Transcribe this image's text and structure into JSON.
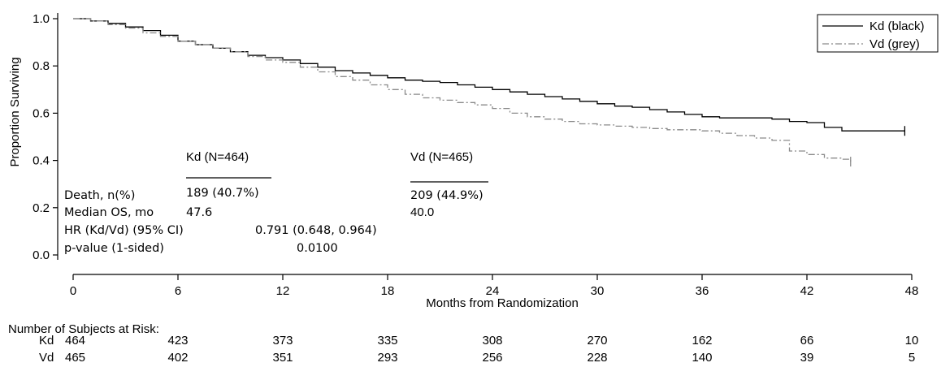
{
  "chart_data": {
    "type": "line",
    "title": "",
    "xlabel": "Months from Randomization",
    "ylabel": "Proportion Surviving",
    "xlim": [
      0,
      48
    ],
    "ylim": [
      0,
      1.0
    ],
    "xticks": [
      "0",
      "6",
      "12",
      "18",
      "24",
      "30",
      "36",
      "42",
      "48"
    ],
    "yticks": [
      "0.0",
      "0.2",
      "0.4",
      "0.6",
      "0.8",
      "1.0"
    ],
    "grid": false,
    "legend_position": "top-right",
    "series": [
      {
        "name": "Kd (black)",
        "color": "#000000",
        "dash": "solid",
        "x": [
          0,
          1,
          2,
          3,
          4,
          5,
          6,
          7,
          8,
          9,
          10,
          11,
          12,
          13,
          14,
          15,
          16,
          17,
          18,
          19,
          20,
          21,
          22,
          23,
          24,
          25,
          26,
          27,
          28,
          29,
          30,
          31,
          32,
          33,
          34,
          35,
          36,
          37,
          38,
          39,
          40,
          41,
          42,
          43,
          44,
          45,
          46,
          47,
          47.6
        ],
        "y": [
          1.0,
          0.99,
          0.98,
          0.965,
          0.95,
          0.93,
          0.905,
          0.89,
          0.875,
          0.86,
          0.845,
          0.835,
          0.825,
          0.81,
          0.795,
          0.78,
          0.77,
          0.76,
          0.75,
          0.74,
          0.735,
          0.73,
          0.72,
          0.71,
          0.7,
          0.69,
          0.68,
          0.67,
          0.66,
          0.65,
          0.64,
          0.63,
          0.625,
          0.615,
          0.605,
          0.595,
          0.585,
          0.58,
          0.58,
          0.58,
          0.575,
          0.565,
          0.56,
          0.54,
          0.525,
          0.525,
          0.525,
          0.525,
          0.525
        ]
      },
      {
        "name": "Vd (grey)",
        "color": "#8a8a8a",
        "dash": "dashdot",
        "x": [
          0,
          1,
          2,
          3,
          4,
          5,
          6,
          7,
          8,
          9,
          10,
          11,
          12,
          13,
          14,
          15,
          16,
          17,
          18,
          19,
          20,
          21,
          22,
          23,
          24,
          25,
          26,
          27,
          28,
          29,
          30,
          31,
          32,
          33,
          34,
          35,
          36,
          37,
          38,
          39,
          40,
          41,
          42,
          43,
          44,
          44.5
        ],
        "y": [
          1.0,
          0.99,
          0.975,
          0.96,
          0.94,
          0.925,
          0.905,
          0.89,
          0.875,
          0.86,
          0.84,
          0.825,
          0.815,
          0.795,
          0.775,
          0.755,
          0.74,
          0.72,
          0.7,
          0.68,
          0.665,
          0.655,
          0.645,
          0.635,
          0.62,
          0.6,
          0.585,
          0.575,
          0.565,
          0.555,
          0.55,
          0.545,
          0.54,
          0.535,
          0.53,
          0.53,
          0.525,
          0.515,
          0.505,
          0.495,
          0.485,
          0.44,
          0.425,
          0.41,
          0.405,
          0.395
        ]
      }
    ],
    "annotations": {
      "kd_header": "Kd (N=464)",
      "vd_header": "Vd (N=465)",
      "death_label": "Death, n(%)",
      "death_kd": "189 (40.7%)",
      "death_vd": "209 (44.9%)",
      "median_label": "Median OS, mo",
      "median_kd": "47.6",
      "median_vd": "40.0",
      "hr_label": "HR (Kd/Vd) (95% CI)",
      "hr_value": "0.791 (0.648, 0.964)",
      "p_label": "p-value (1-sided)",
      "p_value": "0.0100"
    },
    "risk_table": {
      "title": "Number of Subjects at Risk:",
      "rows": [
        {
          "label": "Kd",
          "values": [
            "464",
            "423",
            "373",
            "335",
            "308",
            "270",
            "162",
            "66",
            "10"
          ]
        },
        {
          "label": "Vd",
          "values": [
            "465",
            "402",
            "351",
            "293",
            "256",
            "228",
            "140",
            "39",
            "5"
          ]
        }
      ]
    }
  }
}
